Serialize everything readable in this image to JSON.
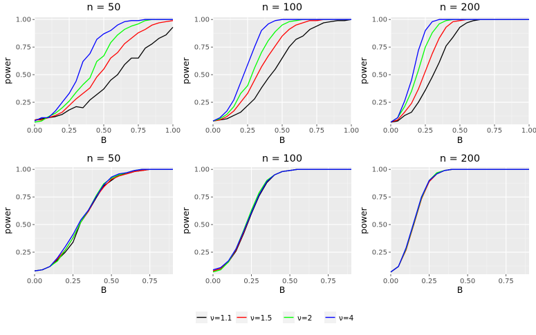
{
  "chart_data": {
    "type": "line",
    "layout": "grid 2x3",
    "legend": {
      "position": "bottom",
      "entries": [
        {
          "name": "ν=1.1",
          "color": "#000000"
        },
        {
          "name": "ν=1.5",
          "color": "#ff0000"
        },
        {
          "name": "ν=2",
          "color": "#00ff00"
        },
        {
          "name": "ν=4",
          "color": "#0000ff"
        }
      ]
    },
    "panels": [
      {
        "title": "n = 50",
        "xlabel": "B",
        "ylabel": "power",
        "xlim": [
          0,
          1
        ],
        "ylim": [
          0.05,
          1.02
        ],
        "xticks": [
          0,
          0.25,
          0.5,
          0.75,
          1
        ],
        "xtick_labels": [
          "0.00",
          "0.25",
          "0.50",
          "0.75",
          "1.00"
        ],
        "yticks": [
          0.25,
          0.5,
          0.75,
          1
        ],
        "ytick_labels": [
          "0.25",
          "0.50",
          "0.75",
          "1.00"
        ],
        "x": [
          0,
          0.05,
          0.1,
          0.15,
          0.2,
          0.25,
          0.3,
          0.35,
          0.4,
          0.45,
          0.5,
          0.55,
          0.6,
          0.65,
          0.7,
          0.75,
          0.8,
          0.85,
          0.9,
          0.95,
          1.0
        ],
        "series": [
          {
            "name": "ν=1.1",
            "color": "#000000",
            "values": [
              0.09,
              0.1,
              0.11,
              0.12,
              0.14,
              0.18,
              0.21,
              0.2,
              0.27,
              0.32,
              0.37,
              0.45,
              0.5,
              0.59,
              0.65,
              0.65,
              0.74,
              0.78,
              0.83,
              0.86,
              0.93
            ]
          },
          {
            "name": "ν=1.5",
            "color": "#ff0000",
            "values": [
              0.09,
              0.09,
              0.11,
              0.13,
              0.16,
              0.22,
              0.28,
              0.33,
              0.38,
              0.48,
              0.55,
              0.65,
              0.7,
              0.78,
              0.83,
              0.88,
              0.91,
              0.95,
              0.97,
              0.98,
              0.99
            ]
          },
          {
            "name": "ν=2",
            "color": "#00ff00",
            "values": [
              0.07,
              0.08,
              0.12,
              0.15,
              0.2,
              0.26,
              0.34,
              0.41,
              0.47,
              0.62,
              0.67,
              0.79,
              0.86,
              0.91,
              0.94,
              0.96,
              0.99,
              1.0,
              1.0,
              1.0,
              1.0
            ]
          },
          {
            "name": "ν=4",
            "color": "#0000ff",
            "values": [
              0.08,
              0.11,
              0.11,
              0.17,
              0.25,
              0.33,
              0.44,
              0.62,
              0.69,
              0.82,
              0.87,
              0.9,
              0.95,
              0.98,
              0.99,
              0.99,
              1.0,
              1.0,
              1.0,
              1.0,
              1.0
            ]
          }
        ]
      },
      {
        "title": "n = 100",
        "xlabel": "B",
        "ylabel": "power",
        "xlim": [
          0,
          1
        ],
        "ylim": [
          0.05,
          1.02
        ],
        "xticks": [
          0,
          0.25,
          0.5,
          0.75,
          1
        ],
        "xtick_labels": [
          "0.00",
          "0.25",
          "0.50",
          "0.75",
          "1.00"
        ],
        "yticks": [
          0.25,
          0.5,
          0.75,
          1
        ],
        "ytick_labels": [
          "0.25",
          "0.50",
          "0.75",
          "1.00"
        ],
        "x": [
          0,
          0.05,
          0.1,
          0.15,
          0.2,
          0.25,
          0.3,
          0.35,
          0.4,
          0.45,
          0.5,
          0.55,
          0.6,
          0.65,
          0.7,
          0.75,
          0.8,
          0.85,
          0.9,
          0.95,
          1.0
        ],
        "series": [
          {
            "name": "ν=1.1",
            "color": "#000000",
            "values": [
              0.08,
              0.09,
              0.1,
              0.13,
              0.16,
              0.22,
              0.28,
              0.38,
              0.47,
              0.55,
              0.65,
              0.75,
              0.82,
              0.85,
              0.91,
              0.94,
              0.97,
              0.98,
              0.99,
              0.99,
              1.0
            ]
          },
          {
            "name": "ν=1.5",
            "color": "#ff0000",
            "values": [
              0.08,
              0.09,
              0.12,
              0.17,
              0.25,
              0.33,
              0.45,
              0.57,
              0.67,
              0.76,
              0.85,
              0.91,
              0.95,
              0.97,
              0.99,
              0.99,
              1.0,
              1.0,
              1.0,
              1.0,
              1.0
            ]
          },
          {
            "name": "ν=2",
            "color": "#00ff00",
            "values": [
              0.08,
              0.1,
              0.14,
              0.21,
              0.33,
              0.4,
              0.56,
              0.7,
              0.81,
              0.89,
              0.95,
              0.98,
              0.99,
              1.0,
              1.0,
              1.0,
              1.0,
              1.0,
              1.0,
              1.0,
              1.0
            ]
          },
          {
            "name": "ν=4",
            "color": "#0000ff",
            "values": [
              0.08,
              0.11,
              0.17,
              0.27,
              0.43,
              0.59,
              0.75,
              0.9,
              0.96,
              0.99,
              1.0,
              1.0,
              1.0,
              1.0,
              1.0,
              1.0,
              1.0,
              1.0,
              1.0,
              1.0,
              1.0
            ]
          }
        ]
      },
      {
        "title": "n = 200",
        "xlabel": "B",
        "ylabel": "power",
        "xlim": [
          0,
          1
        ],
        "ylim": [
          0.05,
          1.02
        ],
        "xticks": [
          0,
          0.25,
          0.5,
          0.75,
          1
        ],
        "xtick_labels": [
          "0.00",
          "0.25",
          "0.50",
          "0.75",
          "1.00"
        ],
        "yticks": [
          0.25,
          0.5,
          0.75,
          1
        ],
        "ytick_labels": [
          "0.25",
          "0.50",
          "0.75",
          "1.00"
        ],
        "x": [
          0,
          0.05,
          0.1,
          0.15,
          0.2,
          0.25,
          0.3,
          0.35,
          0.4,
          0.45,
          0.5,
          0.55,
          0.6,
          0.65,
          0.7,
          0.75,
          0.8,
          0.85,
          0.9,
          0.95,
          1.0
        ],
        "series": [
          {
            "name": "ν=1.1",
            "color": "#000000",
            "values": [
              0.07,
              0.08,
              0.13,
              0.16,
              0.25,
              0.36,
              0.48,
              0.61,
              0.76,
              0.84,
              0.93,
              0.97,
              0.99,
              1.0,
              1.0,
              1.0,
              1.0,
              1.0,
              1.0,
              1.0,
              1.0
            ]
          },
          {
            "name": "ν=1.5",
            "color": "#ff0000",
            "values": [
              0.07,
              0.09,
              0.16,
              0.24,
              0.37,
              0.53,
              0.69,
              0.83,
              0.93,
              0.98,
              0.99,
              1.0,
              1.0,
              1.0,
              1.0,
              1.0,
              1.0,
              1.0,
              1.0,
              1.0,
              1.0
            ]
          },
          {
            "name": "ν=2",
            "color": "#00ff00",
            "values": [
              0.07,
              0.11,
              0.21,
              0.35,
              0.54,
              0.75,
              0.88,
              0.96,
              0.99,
              1.0,
              1.0,
              1.0,
              1.0,
              1.0,
              1.0,
              1.0,
              1.0,
              1.0,
              1.0,
              1.0,
              1.0
            ]
          },
          {
            "name": "ν=4",
            "color": "#0000ff",
            "values": [
              0.07,
              0.11,
              0.26,
              0.45,
              0.72,
              0.9,
              0.98,
              1.0,
              1.0,
              1.0,
              1.0,
              1.0,
              1.0,
              1.0,
              1.0,
              1.0,
              1.0,
              1.0,
              1.0,
              1.0,
              1.0
            ]
          }
        ]
      },
      {
        "title": "n = 50",
        "xlabel": "B",
        "ylabel": "power",
        "xlim": [
          0,
          0.9
        ],
        "ylim": [
          0.05,
          1.02
        ],
        "xticks": [
          0,
          0.25,
          0.5,
          0.75
        ],
        "xtick_labels": [
          "0.00",
          "0.25",
          "0.50",
          "0.75"
        ],
        "yticks": [
          0.25,
          0.5,
          0.75,
          1
        ],
        "ytick_labels": [
          "0.25",
          "0.50",
          "0.75",
          "1.00"
        ],
        "x": [
          0,
          0.05,
          0.1,
          0.15,
          0.2,
          0.25,
          0.3,
          0.35,
          0.4,
          0.45,
          0.5,
          0.55,
          0.6,
          0.65,
          0.7,
          0.75,
          0.8,
          0.85,
          0.9
        ],
        "series": [
          {
            "name": "ν=1.1",
            "color": "#000000",
            "values": [
              0.08,
              0.09,
              0.12,
              0.18,
              0.25,
              0.34,
              0.52,
              0.62,
              0.74,
              0.85,
              0.9,
              0.95,
              0.96,
              0.98,
              0.99,
              1.0,
              1.0,
              1.0,
              1.0
            ]
          },
          {
            "name": "ν=1.5",
            "color": "#ff0000",
            "values": [
              0.08,
              0.09,
              0.12,
              0.19,
              0.27,
              0.38,
              0.52,
              0.62,
              0.75,
              0.84,
              0.91,
              0.94,
              0.96,
              0.98,
              0.99,
              1.0,
              1.0,
              1.0,
              1.0
            ]
          },
          {
            "name": "ν=2",
            "color": "#00ff00",
            "values": [
              0.08,
              0.09,
              0.12,
              0.17,
              0.27,
              0.38,
              0.52,
              0.63,
              0.76,
              0.87,
              0.92,
              0.95,
              0.97,
              0.99,
              1.0,
              1.0,
              1.0,
              1.0,
              1.0
            ]
          },
          {
            "name": "ν=4",
            "color": "#0000ff",
            "values": [
              0.08,
              0.09,
              0.12,
              0.2,
              0.3,
              0.41,
              0.54,
              0.63,
              0.75,
              0.86,
              0.93,
              0.96,
              0.97,
              0.99,
              1.0,
              1.0,
              1.0,
              1.0,
              1.0
            ]
          }
        ]
      },
      {
        "title": "n = 100",
        "xlabel": "B",
        "ylabel": "power",
        "xlim": [
          0,
          0.9
        ],
        "ylim": [
          0.05,
          1.02
        ],
        "xticks": [
          0,
          0.25,
          0.5,
          0.75
        ],
        "xtick_labels": [
          "0.00",
          "0.25",
          "0.50",
          "0.75"
        ],
        "yticks": [
          0.25,
          0.5,
          0.75,
          1
        ],
        "ytick_labels": [
          "0.25",
          "0.50",
          "0.75",
          "1.00"
        ],
        "x": [
          0,
          0.05,
          0.1,
          0.15,
          0.2,
          0.25,
          0.3,
          0.35,
          0.4,
          0.45,
          0.5,
          0.55,
          0.6,
          0.65,
          0.7,
          0.75,
          0.8,
          0.85,
          0.9
        ],
        "series": [
          {
            "name": "ν=1.1",
            "color": "#000000",
            "values": [
              0.08,
              0.1,
              0.16,
              0.26,
              0.42,
              0.6,
              0.76,
              0.88,
              0.95,
              0.98,
              0.99,
              1.0,
              1.0,
              1.0,
              1.0,
              1.0,
              1.0,
              1.0,
              1.0
            ]
          },
          {
            "name": "ν=1.5",
            "color": "#ff0000",
            "values": [
              0.08,
              0.1,
              0.16,
              0.27,
              0.43,
              0.61,
              0.77,
              0.89,
              0.95,
              0.98,
              0.99,
              1.0,
              1.0,
              1.0,
              1.0,
              1.0,
              1.0,
              1.0,
              1.0
            ]
          },
          {
            "name": "ν=2",
            "color": "#00ff00",
            "values": [
              0.07,
              0.09,
              0.16,
              0.28,
              0.45,
              0.63,
              0.79,
              0.9,
              0.95,
              0.98,
              0.99,
              1.0,
              1.0,
              1.0,
              1.0,
              1.0,
              1.0,
              1.0,
              1.0
            ]
          },
          {
            "name": "ν=4",
            "color": "#0000ff",
            "values": [
              0.09,
              0.11,
              0.17,
              0.28,
              0.44,
              0.61,
              0.77,
              0.89,
              0.95,
              0.98,
              0.99,
              1.0,
              1.0,
              1.0,
              1.0,
              1.0,
              1.0,
              1.0,
              1.0
            ]
          }
        ]
      },
      {
        "title": "n = 200",
        "xlabel": "B",
        "ylabel": "power",
        "xlim": [
          0,
          0.9
        ],
        "ylim": [
          0.05,
          1.02
        ],
        "xticks": [
          0,
          0.25,
          0.5,
          0.75
        ],
        "xtick_labels": [
          "0.00",
          "0.25",
          "0.50",
          "0.75"
        ],
        "yticks": [
          0.25,
          0.5,
          0.75,
          1
        ],
        "ytick_labels": [
          "0.25",
          "0.50",
          "0.75",
          "1.00"
        ],
        "x": [
          0,
          0.05,
          0.1,
          0.15,
          0.2,
          0.25,
          0.3,
          0.35,
          0.4,
          0.45,
          0.5,
          0.55,
          0.6,
          0.65,
          0.7,
          0.75,
          0.8,
          0.85,
          0.9
        ],
        "series": [
          {
            "name": "ν=1.1",
            "color": "#000000",
            "values": [
              0.07,
              0.12,
              0.28,
              0.5,
              0.74,
              0.89,
              0.96,
              0.99,
              1.0,
              1.0,
              1.0,
              1.0,
              1.0,
              1.0,
              1.0,
              1.0,
              1.0,
              1.0,
              1.0
            ]
          },
          {
            "name": "ν=1.5",
            "color": "#ff0000",
            "values": [
              0.07,
              0.12,
              0.27,
              0.5,
              0.73,
              0.89,
              0.96,
              0.99,
              1.0,
              1.0,
              1.0,
              1.0,
              1.0,
              1.0,
              1.0,
              1.0,
              1.0,
              1.0,
              1.0
            ]
          },
          {
            "name": "ν=2",
            "color": "#00ff00",
            "values": [
              0.07,
              0.12,
              0.28,
              0.51,
              0.74,
              0.9,
              0.97,
              0.99,
              1.0,
              1.0,
              1.0,
              1.0,
              1.0,
              1.0,
              1.0,
              1.0,
              1.0,
              1.0,
              1.0
            ]
          },
          {
            "name": "ν=4",
            "color": "#0000ff",
            "values": [
              0.07,
              0.12,
              0.29,
              0.52,
              0.75,
              0.9,
              0.96,
              0.99,
              1.0,
              1.0,
              1.0,
              1.0,
              1.0,
              1.0,
              1.0,
              1.0,
              1.0,
              1.0,
              1.0
            ]
          }
        ]
      }
    ]
  }
}
